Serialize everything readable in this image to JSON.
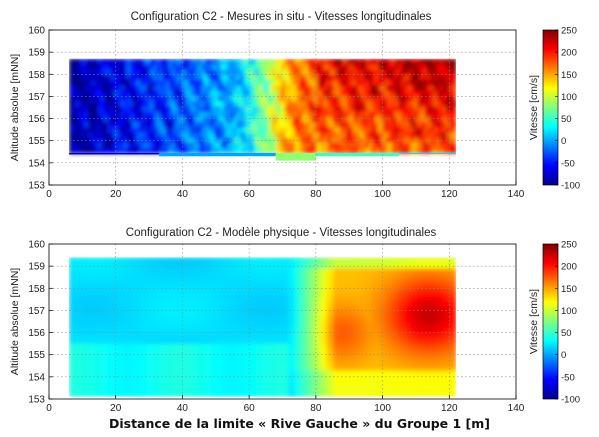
{
  "chart_data": [
    {
      "type": "heatmap",
      "title": "Configuration C2 - Mesures in situ - Vitesses longitudinales",
      "ylabel": "Altitude absolue [mNN]",
      "xlabel": "",
      "xlim": [
        0,
        140
      ],
      "ylim": [
        153,
        160
      ],
      "x_ticks": [
        "0",
        "20",
        "40",
        "60",
        "80",
        "100",
        "120",
        "140"
      ],
      "y_ticks": [
        "153",
        "154",
        "155",
        "156",
        "157",
        "158",
        "159",
        "160"
      ],
      "grid": true,
      "colorbar": {
        "label": "Vitesse [cm/s]",
        "range": [
          -100,
          250
        ],
        "ticks": [
          "-100",
          "-50",
          "0",
          "50",
          "100",
          "150",
          "200",
          "250"
        ],
        "colormap": "jet"
      },
      "data_extent": {
        "x": [
          6,
          122
        ],
        "y_top": 158.7,
        "bottom_profile": [
          [
            6,
            154.4
          ],
          [
            33,
            154.4
          ],
          [
            33,
            154.3
          ],
          [
            68,
            154.3
          ],
          [
            68,
            154.1
          ],
          [
            80,
            154.1
          ],
          [
            80,
            154.3
          ],
          [
            105,
            154.3
          ],
          [
            105,
            154.4
          ],
          [
            122,
            154.4
          ]
        ]
      },
      "velocity_profile": {
        "x": [
          6,
          15,
          25,
          35,
          45,
          55,
          60,
          65,
          70,
          75,
          80,
          90,
          100,
          110,
          122
        ],
        "v": [
          -90,
          -75,
          -55,
          -40,
          -20,
          0,
          30,
          80,
          140,
          170,
          185,
          195,
          200,
          205,
          210
        ]
      },
      "bottom_layer_v": [
        0,
        20,
        50,
        80
      ]
    },
    {
      "type": "heatmap",
      "title": "Configuration C2 - Modèle physique - Vitesses longitudinales",
      "ylabel": "Altitude absolue [mNN]",
      "xlabel": "",
      "xlim": [
        0,
        140
      ],
      "ylim": [
        153,
        160
      ],
      "x_ticks": [
        "0",
        "20",
        "40",
        "60",
        "80",
        "100",
        "120",
        "140"
      ],
      "y_ticks": [
        "153",
        "154",
        "155",
        "156",
        "157",
        "158",
        "159",
        "160"
      ],
      "grid": true,
      "colorbar": {
        "label": "Vitesse [cm/s]",
        "range": [
          -100,
          250
        ],
        "ticks": [
          "-100",
          "-50",
          "0",
          "50",
          "100",
          "150",
          "200",
          "250"
        ],
        "colormap": "jet"
      },
      "data_extent": {
        "x": [
          6,
          122
        ],
        "y_top": 159.4,
        "y_bottom": 153.1
      },
      "velocity_field": {
        "background_v": 20,
        "transition_x": [
          72,
          86
        ],
        "lower_left_v": 35,
        "upper_right_v": 140,
        "peak": {
          "x": 114,
          "y": 156.8,
          "v": 225
        },
        "shoulder": {
          "x": 88,
          "y": 156.0,
          "v": 175
        }
      }
    }
  ],
  "shared_xlabel": "Distance de la limite « Rive Gauche » du Groupe 1 [m]"
}
